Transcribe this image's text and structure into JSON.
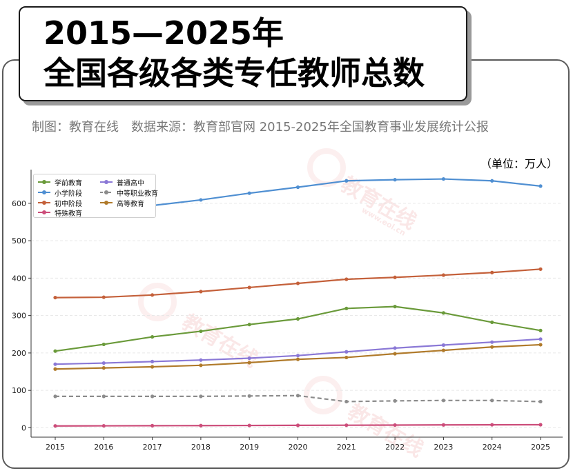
{
  "header": {
    "title_line1": "2015—2025年",
    "title_line2": "全国各级各类专任教师总数"
  },
  "subtitle": {
    "maker": "制图：教育在线",
    "source": "数据来源：教育部官网 2015-2025年全国教育事业发展统计公报"
  },
  "unit_label": "（单位：万人）",
  "watermark": {
    "text": "教育在线",
    "url": "www.eol.cn"
  },
  "chart_data": {
    "type": "line",
    "x": [
      "2015",
      "2016",
      "2017",
      "2018",
      "2019",
      "2020",
      "2021",
      "2022",
      "2023",
      "2024",
      "2025"
    ],
    "ylim": [
      -25,
      690
    ],
    "yticks": [
      0,
      100,
      200,
      300,
      400,
      500,
      600
    ],
    "grid": true,
    "legend_position": "top-left",
    "series": [
      {
        "name": "学前教育",
        "color": "#6a9a3a",
        "dashed": false,
        "values": [
          205,
          223,
          243,
          258,
          276,
          291,
          319,
          324,
          307,
          282,
          260
        ]
      },
      {
        "name": "小学阶段",
        "color": "#4f8fd2",
        "dashed": false,
        "values": [
          569,
          579,
          594,
          609,
          627,
          643,
          660,
          663,
          665,
          660,
          646
        ]
      },
      {
        "name": "初中阶段",
        "color": "#c4603a",
        "dashed": false,
        "values": [
          348,
          349,
          355,
          364,
          375,
          386,
          397,
          402,
          408,
          415,
          424
        ]
      },
      {
        "name": "特殊教育",
        "color": "#cc4d7a",
        "dashed": false,
        "values": [
          5,
          5.3,
          5.6,
          5.9,
          6.2,
          6.6,
          6.9,
          7.3,
          7.7,
          8.0,
          8.2
        ]
      },
      {
        "name": "普通高中",
        "color": "#8a78d6",
        "dashed": false,
        "values": [
          170,
          173,
          177,
          181,
          186,
          193,
          203,
          213,
          221,
          229,
          237
        ]
      },
      {
        "name": "中等职业教育",
        "color": "#8c8c8c",
        "dashed": true,
        "values": [
          84,
          84,
          84,
          84,
          85,
          86,
          70,
          72,
          73,
          73,
          70
        ]
      },
      {
        "name": "高等教育",
        "color": "#b07a2a",
        "dashed": false,
        "values": [
          157,
          160,
          163,
          167,
          174,
          183,
          188,
          198,
          207,
          216,
          222
        ]
      }
    ]
  }
}
